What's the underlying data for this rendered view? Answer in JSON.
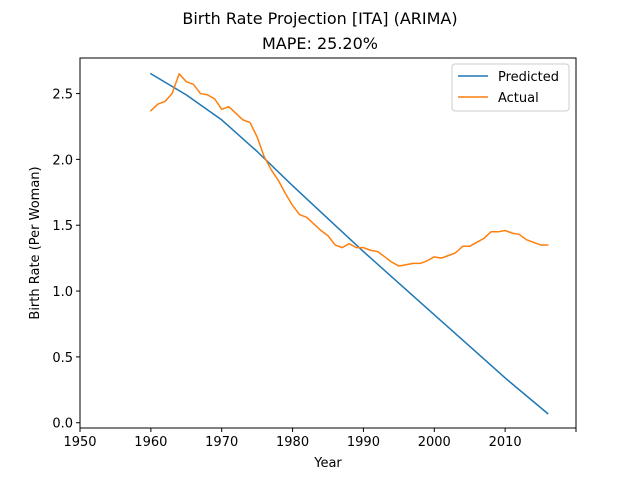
{
  "chart_data": {
    "type": "line",
    "title": "Birth Rate Projection [ITA] (ARIMA)",
    "subtitle": "MAPE: 25.20%",
    "xlabel": "Year",
    "ylabel": "Birth Rate (Per Woman)",
    "xlim": [
      1950,
      2020
    ],
    "ylim": [
      -0.04,
      2.77
    ],
    "xticks": [
      1950,
      1960,
      1970,
      1980,
      1990,
      2000,
      2010
    ],
    "xtick_labels": [
      "1950",
      "1960",
      "1970",
      "1980",
      "1990",
      "2000",
      "2010"
    ],
    "yticks": [
      0.0,
      0.5,
      1.0,
      1.5,
      2.0,
      2.5
    ],
    "ytick_labels": [
      "0.0",
      "0.5",
      "1.0",
      "1.5",
      "2.0",
      "2.5"
    ],
    "grid": false,
    "legend_position": "top-right",
    "series": [
      {
        "name": "Predicted",
        "color": "#1f77b4",
        "x": [
          1960,
          1965,
          1970,
          1975,
          1980,
          1985,
          1990,
          1995,
          2000,
          2005,
          2010,
          2016
        ],
        "y": [
          2.65,
          2.49,
          2.3,
          2.06,
          1.8,
          1.55,
          1.3,
          1.06,
          0.82,
          0.58,
          0.34,
          0.07
        ]
      },
      {
        "name": "Actual",
        "color": "#ff7f0e",
        "x": [
          1960,
          1961,
          1962,
          1963,
          1964,
          1965,
          1966,
          1967,
          1968,
          1969,
          1970,
          1971,
          1972,
          1973,
          1974,
          1975,
          1976,
          1977,
          1978,
          1979,
          1980,
          1981,
          1982,
          1983,
          1984,
          1985,
          1986,
          1987,
          1988,
          1989,
          1990,
          1991,
          1992,
          1993,
          1994,
          1995,
          1996,
          1997,
          1998,
          1999,
          2000,
          2001,
          2002,
          2003,
          2004,
          2005,
          2006,
          2007,
          2008,
          2009,
          2010,
          2011,
          2012,
          2013,
          2014,
          2015,
          2016
        ],
        "y": [
          2.37,
          2.42,
          2.44,
          2.5,
          2.65,
          2.59,
          2.57,
          2.5,
          2.49,
          2.46,
          2.38,
          2.4,
          2.35,
          2.3,
          2.28,
          2.17,
          2.02,
          1.92,
          1.84,
          1.74,
          1.65,
          1.58,
          1.56,
          1.51,
          1.46,
          1.42,
          1.35,
          1.33,
          1.36,
          1.33,
          1.33,
          1.31,
          1.3,
          1.26,
          1.22,
          1.19,
          1.2,
          1.21,
          1.21,
          1.23,
          1.26,
          1.25,
          1.27,
          1.29,
          1.34,
          1.34,
          1.37,
          1.4,
          1.45,
          1.45,
          1.46,
          1.44,
          1.43,
          1.39,
          1.37,
          1.35,
          1.35
        ]
      }
    ]
  }
}
